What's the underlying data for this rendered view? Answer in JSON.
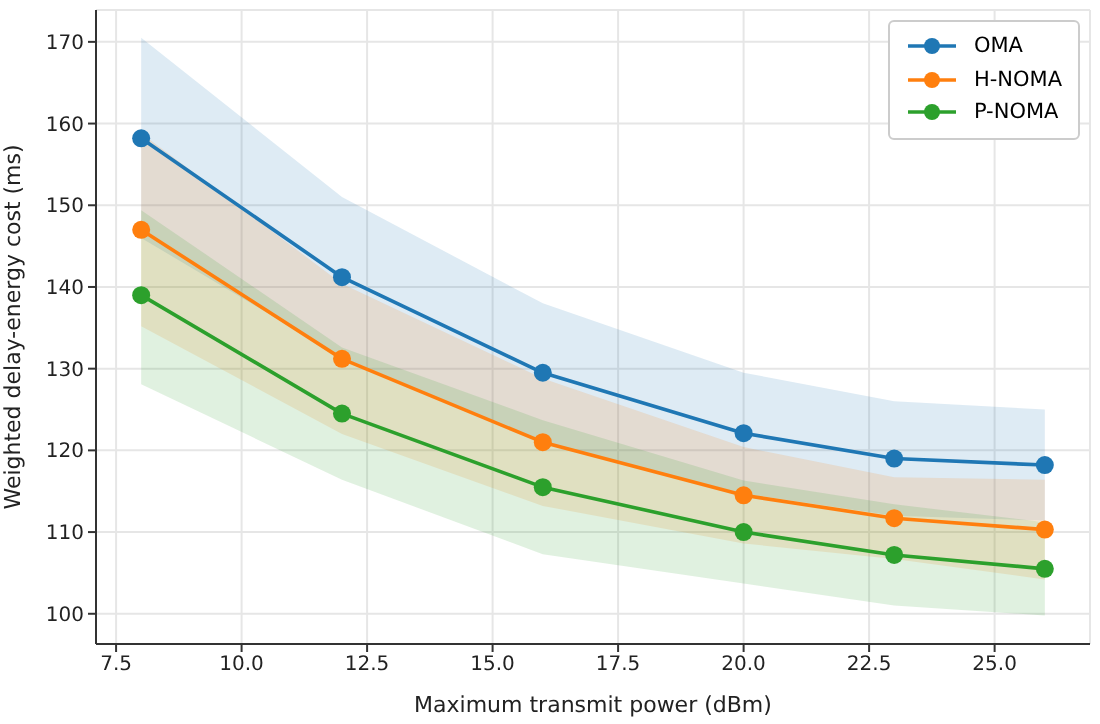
{
  "chart_data": {
    "type": "line",
    "xlabel": "Maximum transmit power (dBm)",
    "ylabel": "Weighted delay-energy cost (ms)",
    "x": [
      8,
      12,
      16,
      20,
      23,
      26
    ],
    "series": [
      {
        "name": "OMA",
        "color": "#1f77b4",
        "values": [
          158.2,
          141.2,
          129.5,
          122.1,
          119,
          118.2
        ],
        "lower": [
          146,
          131.4,
          121,
          114.7,
          112,
          111.4
        ],
        "upper": [
          170.5,
          151,
          138,
          129.5,
          126,
          125
        ]
      },
      {
        "name": "H-NOMA",
        "color": "#ff7f0e",
        "values": [
          147,
          131.2,
          121,
          114.5,
          111.7,
          110.3
        ],
        "lower": [
          135.2,
          122,
          113.2,
          108.6,
          106.7,
          104.2
        ],
        "upper": [
          158.8,
          140.4,
          128.8,
          120.4,
          116.7,
          116.4
        ]
      },
      {
        "name": "P-NOMA",
        "color": "#2ca02c",
        "values": [
          139,
          124.5,
          115.5,
          110,
          107.2,
          105.5
        ],
        "lower": [
          128.1,
          116.4,
          107.3,
          103.7,
          101,
          99.8
        ],
        "upper": [
          149.4,
          132.6,
          123.7,
          116.3,
          113.4,
          111.2
        ]
      }
    ],
    "xlim": [
      7.1,
      26.9
    ],
    "xticks": [
      {
        "value": 7.5,
        "label": "7.5"
      },
      {
        "value": 10,
        "label": "10.0"
      },
      {
        "value": 12.5,
        "label": "12.5"
      },
      {
        "value": 15,
        "label": "15.0"
      },
      {
        "value": 17.5,
        "label": "17.5"
      },
      {
        "value": 20,
        "label": "20.0"
      },
      {
        "value": 22.5,
        "label": "22.5"
      },
      {
        "value": 25,
        "label": "25.0"
      }
    ],
    "ylim": [
      96.3,
      173.9
    ],
    "yticks": [
      100,
      110,
      120,
      130,
      140,
      150,
      160,
      170
    ],
    "grid": true,
    "legend": "top right",
    "marker": "circle",
    "line_style": "solid"
  }
}
